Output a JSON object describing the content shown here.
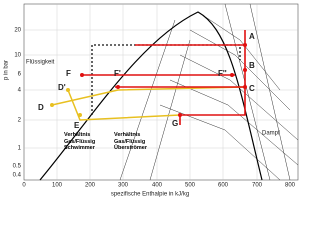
{
  "diagram": {
    "x_axis": {
      "title": "spezifische Enthalpie in kJ/kg",
      "ticks": [
        "0",
        "100",
        "200",
        "300",
        "400",
        "500",
        "600",
        "700",
        "800"
      ]
    },
    "y_axis": {
      "title": "p in bar",
      "ticks": [
        "20",
        "10",
        "6",
        "4",
        "2",
        "1",
        "0.5",
        "0.4"
      ]
    },
    "regions": {
      "liquid": "Flüssigkeit",
      "vapor": "Dampf"
    },
    "points": [
      "A",
      "B",
      "C",
      "D",
      "D'",
      "E",
      "F",
      "F'",
      "F''",
      "G"
    ],
    "annotations": {
      "float": "Verhältnis Gas/Flüssig Schwimmer",
      "overflow": "Verhältnis Gas/Flüssig Überströmer"
    }
  }
}
